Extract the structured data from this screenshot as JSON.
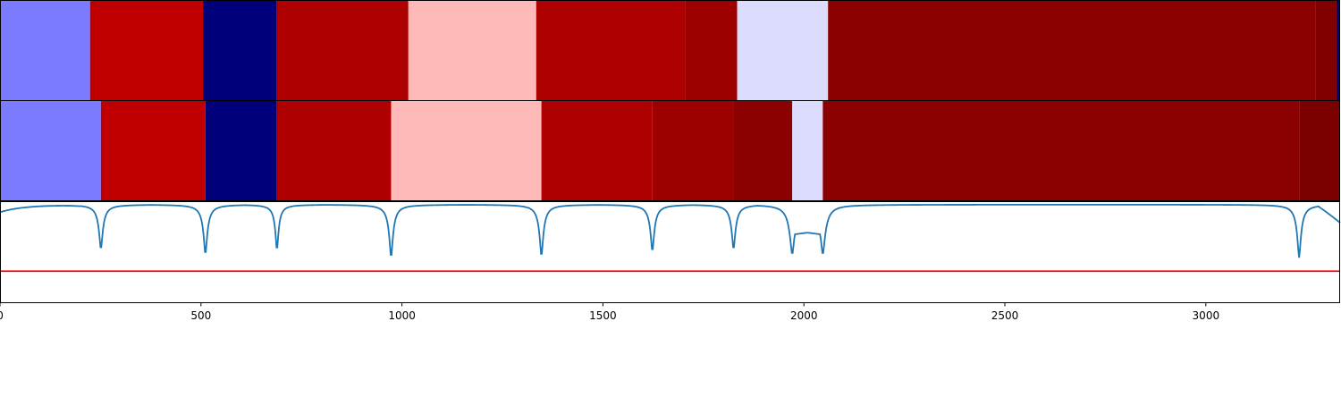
{
  "chart_data": {
    "type": "segmentation",
    "xlim": [
      0,
      3334
    ],
    "x_ticks": [
      0,
      500,
      1000,
      1500,
      2000,
      2500,
      3000
    ],
    "x_tick_labels": [
      "0",
      "500",
      "1000",
      "1500",
      "2000",
      "2500",
      "3000"
    ],
    "rows": [
      {
        "segments": [
          {
            "start": 0,
            "end": 224,
            "color": "#7b7bff"
          },
          {
            "start": 224,
            "end": 505,
            "color": "#c00000"
          },
          {
            "start": 505,
            "end": 689,
            "color": "#00007b"
          },
          {
            "start": 689,
            "end": 1016,
            "color": "#ae0000"
          },
          {
            "start": 1016,
            "end": 1334,
            "color": "#ffb9b9"
          },
          {
            "start": 1334,
            "end": 1705,
            "color": "#ae0000"
          },
          {
            "start": 1705,
            "end": 1834,
            "color": "#9e0000"
          },
          {
            "start": 1834,
            "end": 2060,
            "color": "#dcdcff"
          },
          {
            "start": 2060,
            "end": 3272,
            "color": "#8b0000"
          },
          {
            "start": 3272,
            "end": 3325,
            "color": "#800000"
          },
          {
            "start": 3325,
            "end": 3334,
            "color": "#00007b"
          }
        ]
      },
      {
        "segments": [
          {
            "start": 0,
            "end": 251,
            "color": "#7b7bff"
          },
          {
            "start": 251,
            "end": 511,
            "color": "#c00000"
          },
          {
            "start": 511,
            "end": 689,
            "color": "#00007b"
          },
          {
            "start": 689,
            "end": 973,
            "color": "#ae0000"
          },
          {
            "start": 973,
            "end": 1347,
            "color": "#ffb9b9"
          },
          {
            "start": 1347,
            "end": 1623,
            "color": "#ae0000"
          },
          {
            "start": 1623,
            "end": 1825,
            "color": "#9e0000"
          },
          {
            "start": 1825,
            "end": 1971,
            "color": "#8b0000"
          },
          {
            "start": 1971,
            "end": 2047,
            "color": "#dcdcff"
          },
          {
            "start": 2047,
            "end": 3232,
            "color": "#8b0000"
          },
          {
            "start": 3232,
            "end": 3334,
            "color": "#7b0000"
          }
        ]
      }
    ],
    "signal": {
      "color": "#1f77b4",
      "ylim": [
        0,
        1
      ],
      "baseline": 0.975,
      "start_value": 0.9,
      "end_value": 0.8,
      "dips": [
        {
          "x": 251,
          "depth": 0.45,
          "width": 6
        },
        {
          "x": 511,
          "depth": 0.5,
          "width": 6
        },
        {
          "x": 689,
          "depth": 0.46,
          "width": 5
        },
        {
          "x": 973,
          "depth": 0.53,
          "width": 6
        },
        {
          "x": 1347,
          "depth": 0.52,
          "width": 6
        },
        {
          "x": 1623,
          "depth": 0.47,
          "width": 6
        },
        {
          "x": 1825,
          "depth": 0.45,
          "width": 6
        },
        {
          "x": 1971,
          "depth": 0.5,
          "width": 8
        },
        {
          "x": 2047,
          "depth": 0.5,
          "width": 8
        },
        {
          "x": 3232,
          "depth": 0.53,
          "width": 6
        }
      ],
      "threshold": {
        "value": 0.31,
        "color": "#ff0000"
      }
    }
  }
}
